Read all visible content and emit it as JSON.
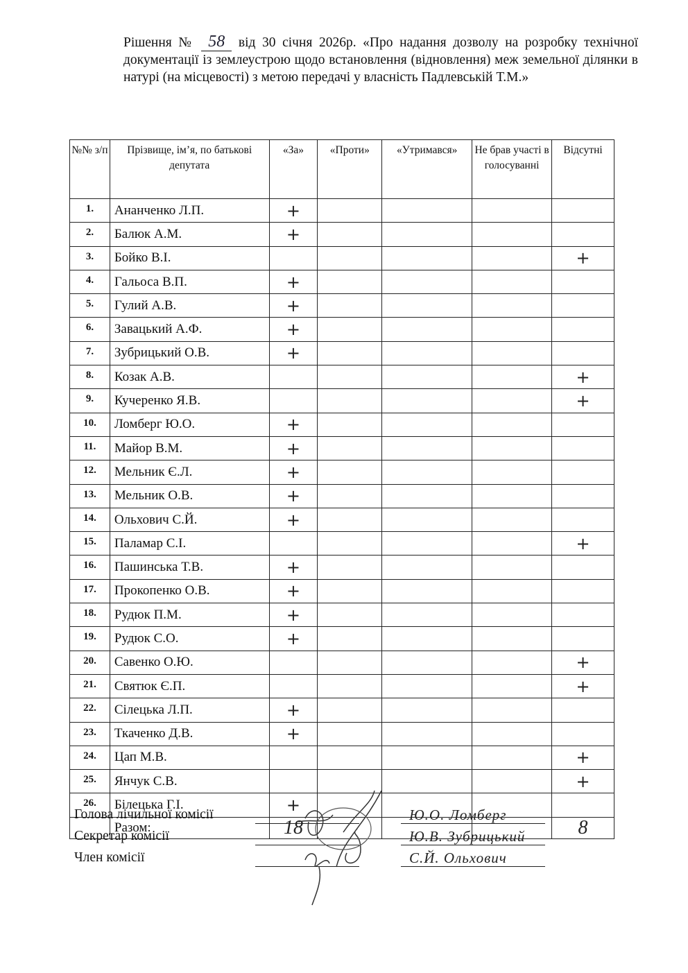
{
  "heading": {
    "prefix": "Рішення №",
    "number": "58",
    "rest": "від  30 січня 2026р. «Про надання дозволу на розробку технічної документації із землеустрою щодо встановлення (відновлення) меж земельної ділянки в натурі (на місцевості) з метою передачі у власність Падлевській Т.М.»"
  },
  "table": {
    "headers": [
      "№№ з/п",
      "Прізвище, ім’я, по батькові депутата",
      "«За»",
      "«Проти»",
      "«Утримався»",
      "Не брав участі в голосуванні",
      "Відсутні"
    ],
    "mark": "+",
    "rows": [
      {
        "n": "1.",
        "name": "Ананченко Л.П.",
        "vote": "za"
      },
      {
        "n": "2.",
        "name": "Балюк А.М.",
        "vote": "za"
      },
      {
        "n": "3.",
        "name": "Бойко В.І.",
        "vote": "absent"
      },
      {
        "n": "4.",
        "name": "Гальоса В.П.",
        "vote": "za"
      },
      {
        "n": "5.",
        "name": "Гулий А.В.",
        "vote": "za"
      },
      {
        "n": "6.",
        "name": "Завацький А.Ф.",
        "vote": "za"
      },
      {
        "n": "7.",
        "name": "Зубрицький О.В.",
        "vote": "za"
      },
      {
        "n": "8.",
        "name": "Козак А.В.",
        "vote": "absent"
      },
      {
        "n": "9.",
        "name": "Кучеренко Я.В.",
        "vote": "absent"
      },
      {
        "n": "10.",
        "name": "Ломберг Ю.О.",
        "vote": "za"
      },
      {
        "n": "11.",
        "name": "Майор В.М.",
        "vote": "za"
      },
      {
        "n": "12.",
        "name": "Мельник Є.Л.",
        "vote": "za"
      },
      {
        "n": "13.",
        "name": "Мельник О.В.",
        "vote": "za"
      },
      {
        "n": "14.",
        "name": "Ольхович С.Й.",
        "vote": "za"
      },
      {
        "n": "15.",
        "name": "Паламар С.І.",
        "vote": "absent"
      },
      {
        "n": "16.",
        "name": "Пашинська Т.В.",
        "vote": "za"
      },
      {
        "n": "17.",
        "name": "Прокопенко О.В.",
        "vote": "za"
      },
      {
        "n": "18.",
        "name": "Рудюк П.М.",
        "vote": "za"
      },
      {
        "n": "19.",
        "name": "Рудюк С.О.",
        "vote": "za"
      },
      {
        "n": "20.",
        "name": "Савенко О.Ю.",
        "vote": "absent"
      },
      {
        "n": "21.",
        "name": "Святюк Є.П.",
        "vote": "absent"
      },
      {
        "n": "22.",
        "name": "Сілецька Л.П.",
        "vote": "za"
      },
      {
        "n": "23.",
        "name": "Ткаченко Д.В.",
        "vote": "za"
      },
      {
        "n": "24.",
        "name": "Цап М.В.",
        "vote": "absent"
      },
      {
        "n": "25.",
        "name": "Янчук С.В.",
        "vote": "absent"
      },
      {
        "n": "26.",
        "name": "Білецька Г.І.",
        "vote": "za"
      }
    ],
    "total_label": "Разом:",
    "total_za": "18",
    "total_absent": "8"
  },
  "signatures": [
    {
      "role": "Голова лічильної комісії",
      "name": "Ю.О. Ломберг"
    },
    {
      "role": "Секретар комісії",
      "name": "Ю.В. Зубрицький"
    },
    {
      "role": "Член комісії",
      "name": "С.Й. Ольхович"
    }
  ]
}
